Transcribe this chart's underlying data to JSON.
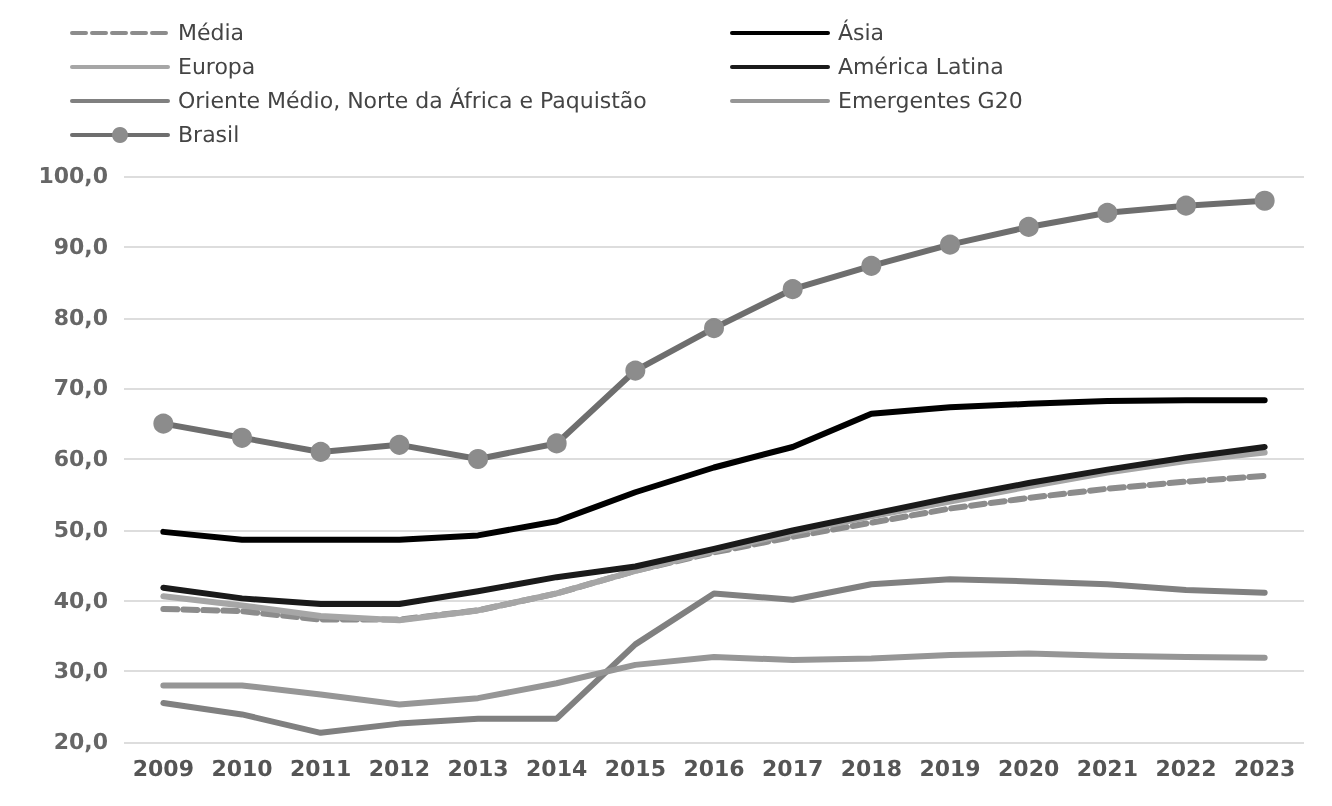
{
  "chart_data": {
    "type": "line",
    "categories": [
      "2009",
      "2010",
      "2011",
      "2012",
      "2013",
      "2014",
      "2015",
      "2016",
      "2017",
      "2018",
      "2019",
      "2020",
      "2021",
      "2022",
      "2023"
    ],
    "series": [
      {
        "name": "Média",
        "color": "#8c8c8c",
        "line_style": "dashed",
        "marker": "none",
        "values": [
          38.8,
          38.5,
          37.3,
          37.3,
          38.6,
          41.0,
          44.2,
          46.8,
          49.0,
          51.0,
          53.0,
          54.5,
          55.8,
          56.8,
          57.6
        ]
      },
      {
        "name": "Ásia",
        "color": "#000000",
        "marker": "none",
        "values": [
          49.7,
          48.6,
          48.6,
          48.6,
          49.2,
          51.2,
          55.3,
          58.8,
          61.7,
          66.4,
          67.3,
          67.8,
          68.2,
          68.3,
          68.3
        ]
      },
      {
        "name": "Europa",
        "color": "#a6a6a6",
        "marker": "none",
        "values": [
          40.6,
          39.3,
          37.8,
          37.2,
          38.6,
          41.0,
          44.2,
          47.0,
          49.6,
          51.9,
          54.0,
          56.1,
          58.1,
          59.7,
          60.9
        ]
      },
      {
        "name": "América Latina",
        "color": "#1a1a1a",
        "marker": "none",
        "values": [
          41.8,
          40.3,
          39.5,
          39.5,
          41.3,
          43.3,
          44.8,
          47.3,
          49.9,
          52.2,
          54.5,
          56.6,
          58.5,
          60.2,
          61.7
        ]
      },
      {
        "name": "Oriente Médio, Norte da África e Paquistão",
        "color": "#808080",
        "marker": "none",
        "values": [
          25.5,
          23.9,
          21.3,
          22.6,
          23.3,
          23.3,
          33.8,
          41.0,
          40.1,
          42.3,
          43.0,
          42.7,
          42.3,
          41.5,
          41.1
        ]
      },
      {
        "name": "Emergentes G20",
        "color": "#969696",
        "marker": "none",
        "values": [
          28.0,
          28.0,
          26.7,
          25.3,
          26.2,
          28.3,
          30.9,
          32.0,
          31.6,
          31.8,
          32.3,
          32.5,
          32.2,
          32.0,
          31.9
        ]
      },
      {
        "name": "Brasil",
        "color": "#6e6e6e",
        "marker": "circle",
        "values": [
          65.0,
          63.0,
          61.0,
          62.0,
          60.0,
          62.2,
          72.5,
          78.5,
          84.0,
          87.3,
          90.3,
          92.8,
          94.8,
          95.8,
          96.5
        ]
      }
    ],
    "ylim": [
      20,
      100
    ],
    "yticks": [
      {
        "value": 20,
        "label": "20,0"
      },
      {
        "value": 30,
        "label": "30,0"
      },
      {
        "value": 40,
        "label": "40,0"
      },
      {
        "value": 50,
        "label": "50,0"
      },
      {
        "value": 60,
        "label": "60,0"
      },
      {
        "value": 70,
        "label": "70,0"
      },
      {
        "value": 80,
        "label": "80,0"
      },
      {
        "value": 90,
        "label": "90,0"
      },
      {
        "value": 100,
        "label": "100,0"
      }
    ],
    "grid": "y",
    "legend": "top",
    "line_style": "solid"
  }
}
